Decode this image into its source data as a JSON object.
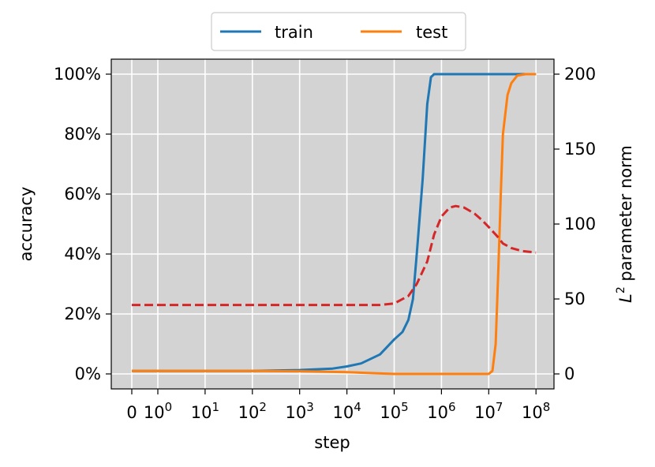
{
  "chart_data": {
    "type": "line",
    "xlabel": "step",
    "ylabel": "accuracy",
    "y2label_base": "L",
    "y2label_sup": "2",
    "y2label_rest": " parameter norm",
    "y2label_color": "#d62728",
    "x_scale": "symlog",
    "x_ticks": [
      {
        "value": 0,
        "base": "0",
        "exp": ""
      },
      {
        "value": 1,
        "base": "10",
        "exp": "0"
      },
      {
        "value": 10,
        "base": "10",
        "exp": "1"
      },
      {
        "value": 100,
        "base": "10",
        "exp": "2"
      },
      {
        "value": 1000,
        "base": "10",
        "exp": "3"
      },
      {
        "value": 10000,
        "base": "10",
        "exp": "4"
      },
      {
        "value": 100000,
        "base": "10",
        "exp": "5"
      },
      {
        "value": 1000000,
        "base": "10",
        "exp": "6"
      },
      {
        "value": 10000000,
        "base": "10",
        "exp": "7"
      },
      {
        "value": 100000000,
        "base": "10",
        "exp": "8"
      }
    ],
    "y_ticks": [
      {
        "value": 0,
        "label": "0%"
      },
      {
        "value": 20,
        "label": "20%"
      },
      {
        "value": 40,
        "label": "40%"
      },
      {
        "value": 60,
        "label": "60%"
      },
      {
        "value": 80,
        "label": "80%"
      },
      {
        "value": 100,
        "label": "100%"
      }
    ],
    "y2_ticks": [
      {
        "value": 0,
        "label": "0"
      },
      {
        "value": 50,
        "label": "50"
      },
      {
        "value": 100,
        "label": "100"
      },
      {
        "value": 150,
        "label": "150"
      },
      {
        "value": 200,
        "label": "200"
      }
    ],
    "ylim": [
      -5,
      105
    ],
    "y2lim": [
      -10,
      210
    ],
    "grid": true,
    "background": "#d3d3d3",
    "legend_placement": "top-center",
    "series": [
      {
        "name": "train",
        "color": "#1f77b4",
        "axis": "left",
        "dashed": false,
        "points": [
          [
            0,
            1
          ],
          [
            1,
            1
          ],
          [
            10,
            1
          ],
          [
            100,
            1
          ],
          [
            1000,
            1.3
          ],
          [
            5000,
            1.8
          ],
          [
            10000,
            2.5
          ],
          [
            20000,
            3.5
          ],
          [
            50000,
            6.5
          ],
          [
            100000,
            11.5
          ],
          [
            150000,
            14
          ],
          [
            200000,
            18
          ],
          [
            250000,
            25
          ],
          [
            300000,
            40
          ],
          [
            400000,
            65
          ],
          [
            500000,
            90
          ],
          [
            600000,
            99
          ],
          [
            700000,
            100
          ],
          [
            1000000,
            100
          ],
          [
            10000000,
            100
          ],
          [
            100000000,
            100
          ]
        ]
      },
      {
        "name": "test",
        "color": "#ff7f0e",
        "axis": "left",
        "dashed": false,
        "points": [
          [
            0,
            1
          ],
          [
            1,
            1
          ],
          [
            10,
            1
          ],
          [
            100,
            1
          ],
          [
            1000,
            0.9
          ],
          [
            10000,
            0.6
          ],
          [
            30000,
            0.3
          ],
          [
            100000,
            0
          ],
          [
            1000000,
            0
          ],
          [
            10000000,
            0
          ],
          [
            12000000,
            1
          ],
          [
            14000000,
            10
          ],
          [
            16000000,
            35
          ],
          [
            18000000,
            60
          ],
          [
            20000000,
            80
          ],
          [
            25000000,
            93
          ],
          [
            30000000,
            97
          ],
          [
            40000000,
            99.5
          ],
          [
            60000000,
            100
          ],
          [
            100000000,
            100
          ]
        ]
      },
      {
        "name": "",
        "color": "#d62728",
        "axis": "right",
        "dashed": true,
        "points": [
          [
            0,
            46
          ],
          [
            1,
            46
          ],
          [
            10,
            46
          ],
          [
            100,
            46
          ],
          [
            1000,
            46
          ],
          [
            10000,
            46
          ],
          [
            50000,
            46
          ],
          [
            100000,
            47
          ],
          [
            200000,
            52
          ],
          [
            300000,
            60
          ],
          [
            500000,
            75
          ],
          [
            700000,
            93
          ],
          [
            1000000,
            105
          ],
          [
            1500000,
            111
          ],
          [
            2000000,
            112
          ],
          [
            3000000,
            111
          ],
          [
            5000000,
            107
          ],
          [
            7000000,
            103
          ],
          [
            10000000,
            98
          ],
          [
            15000000,
            92
          ],
          [
            20000000,
            87
          ],
          [
            30000000,
            84
          ],
          [
            50000000,
            82
          ],
          [
            100000000,
            81
          ]
        ]
      }
    ]
  }
}
